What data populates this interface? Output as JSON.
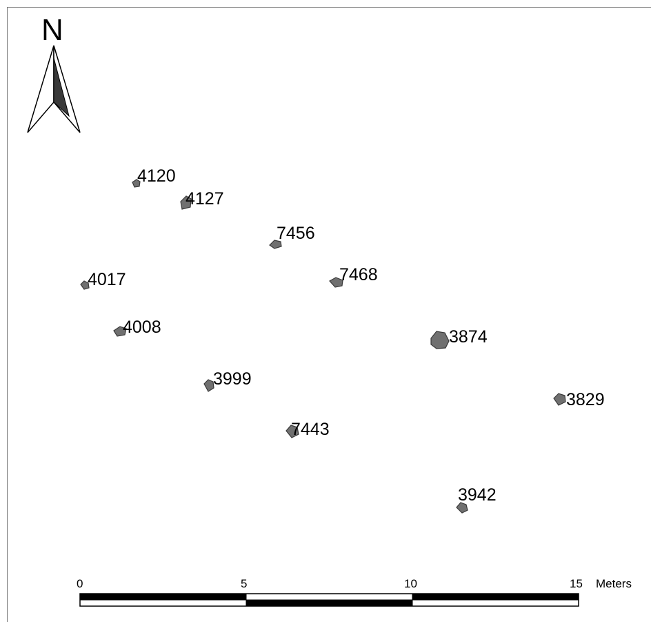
{
  "north_arrow": {
    "label": "N",
    "icon": "north-arrow-icon"
  },
  "features": [
    {
      "id": "4120"
    },
    {
      "id": "4127"
    },
    {
      "id": "7456"
    },
    {
      "id": "7468"
    },
    {
      "id": "4017"
    },
    {
      "id": "4008"
    },
    {
      "id": "3874"
    },
    {
      "id": "3999"
    },
    {
      "id": "3829"
    },
    {
      "id": "7443"
    },
    {
      "id": "3942"
    }
  ],
  "scale_bar": {
    "ticks": [
      "0",
      "5",
      "10",
      "15"
    ],
    "unit": "Meters"
  },
  "colors": {
    "feature_fill": "#707070",
    "feature_stroke": "#3a3a3a",
    "ink": "#000000"
  }
}
